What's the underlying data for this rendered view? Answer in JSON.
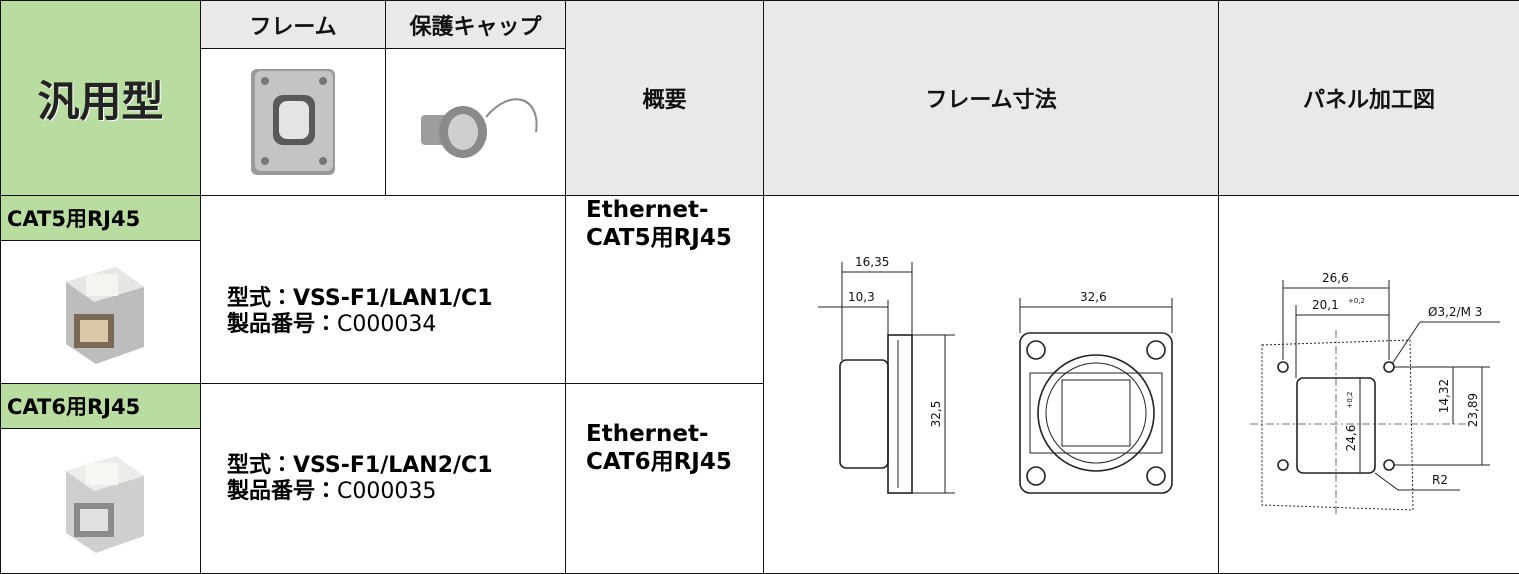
{
  "header": {
    "type_label": "汎用型",
    "frame": "フレーム",
    "cap": "保護キャップ",
    "overview": "概要",
    "frame_dimensions": "フレーム寸法",
    "panel_cutout": "パネル加工図"
  },
  "rows": [
    {
      "label": "CAT5用RJ45",
      "model_label": "型式：",
      "model": "VSS-F1/LAN1/C1",
      "number_label": "製品番号：",
      "number": "C000034",
      "overview": [
        "Ethernet-",
        "CAT5用RJ45"
      ]
    },
    {
      "label": "CAT6用RJ45",
      "model_label": "型式：",
      "model": "VSS-F1/LAN2/C1",
      "number_label": "製品番号：",
      "number": "C000035",
      "overview": [
        "Ethernet-",
        "CAT6用RJ45"
      ]
    }
  ],
  "frame_drawing": {
    "labels": [
      "16,35",
      "10,3",
      "32,6",
      "32,5"
    ]
  },
  "panel_drawing": {
    "labels": [
      "26,6",
      "20,1",
      "+0,2",
      "Ø3,2/M 3",
      "14,32",
      "23,89",
      "24,6",
      "+0,2",
      "R2"
    ]
  }
}
